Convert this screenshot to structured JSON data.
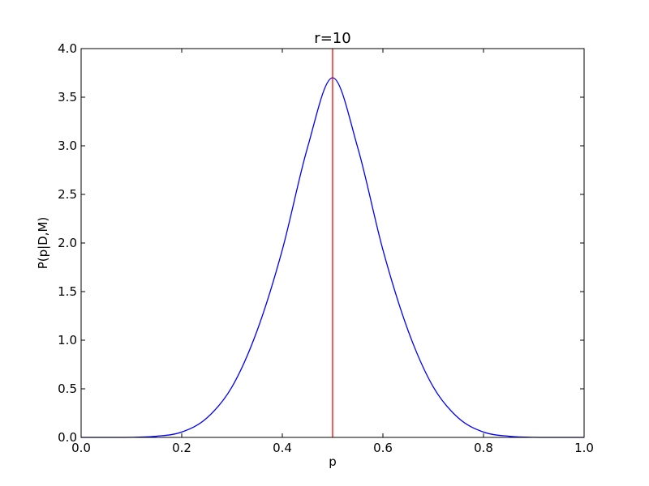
{
  "chart_data": {
    "type": "line",
    "title": "r=10",
    "xlabel": "p",
    "ylabel": "P(p|D,M)",
    "xlim": [
      0.0,
      1.0
    ],
    "ylim": [
      0.0,
      4.0
    ],
    "xticks": [
      "0.0",
      "0.2",
      "0.4",
      "0.6",
      "0.8",
      "1.0"
    ],
    "yticks": [
      "0.0",
      "0.5",
      "1.0",
      "1.5",
      "2.0",
      "2.5",
      "3.0",
      "3.5",
      "4.0"
    ],
    "grid": false,
    "legend": "none",
    "series": [
      {
        "color": "#0000ff",
        "x": [
          0.0,
          0.05,
          0.1,
          0.15,
          0.2,
          0.25,
          0.3,
          0.35,
          0.4,
          0.45,
          0.5,
          0.55,
          0.6,
          0.65,
          0.7,
          0.75,
          0.8,
          0.85,
          0.9,
          0.95,
          1.0
        ],
        "y": [
          0.0,
          0.0,
          0.001,
          0.012,
          0.055,
          0.2,
          0.52,
          1.1,
          1.93,
          2.98,
          3.7,
          2.98,
          1.93,
          1.1,
          0.52,
          0.2,
          0.055,
          0.012,
          0.001,
          0.0,
          0.0
        ]
      }
    ],
    "vlines": [
      {
        "x": 0.5,
        "color": "#ff0000"
      }
    ]
  }
}
